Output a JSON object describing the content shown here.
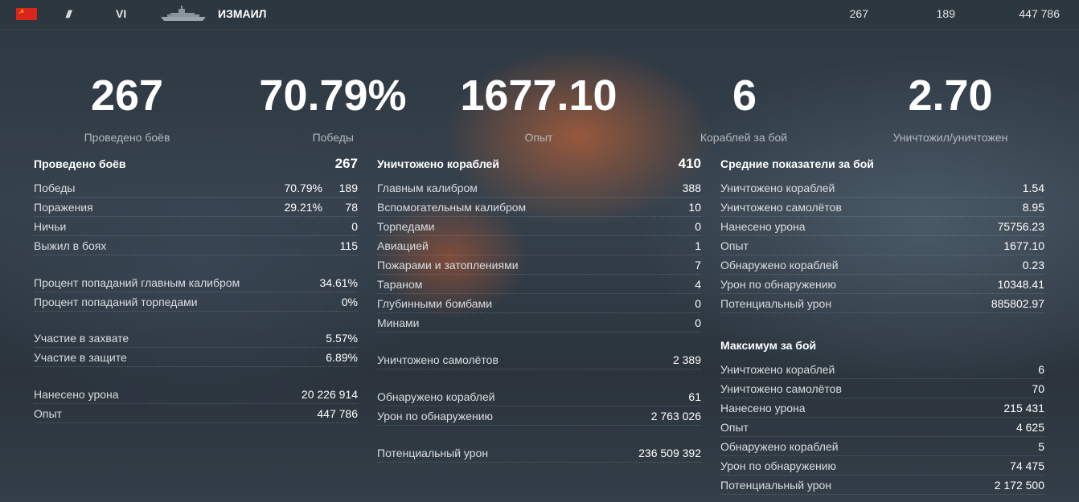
{
  "ship_bar": {
    "flag_icon": "ussr-flag-icon",
    "class_icon": "battleship-class-icon",
    "tier": "VI",
    "ship_image": "ship-silhouette-icon",
    "name": "ИЗМАИЛ",
    "battles": "267",
    "wins": "189",
    "experience": "447 786"
  },
  "summary": [
    {
      "value": "267",
      "label": "Проведено боёв"
    },
    {
      "value": "70.79%",
      "label": "Победы"
    },
    {
      "value": "1677.10",
      "label": "Опыт"
    },
    {
      "value": "6",
      "label": "Кораблей за бой"
    },
    {
      "value": "2.70",
      "label": "Уничтожил/уничтожен"
    }
  ],
  "col1": {
    "header": {
      "label": "Проведено боёв",
      "value": "267"
    },
    "rows": [
      {
        "label": "Победы",
        "pct": "70.79%",
        "value": "189"
      },
      {
        "label": "Поражения",
        "pct": "29.21%",
        "value": "78"
      },
      {
        "label": "Ничьи",
        "value": "0"
      },
      {
        "label": "Выжил в боях",
        "value": "115"
      },
      {
        "label": "Процент попаданий главным калибром",
        "value": "34.61%"
      },
      {
        "label": "Процент попаданий торпедами",
        "value": "0%"
      },
      {
        "label": "Участие в захвате",
        "value": "5.57%"
      },
      {
        "label": "Участие в защите",
        "value": "6.89%"
      },
      {
        "label": "Нанесено урона",
        "value": "20 226 914"
      },
      {
        "label": "Опыт",
        "value": "447 786"
      }
    ]
  },
  "col2": {
    "header": {
      "label": "Уничтожено кораблей",
      "value": "410"
    },
    "rows": [
      {
        "label": "Главным калибром",
        "value": "388"
      },
      {
        "label": "Вспомогательным калибром",
        "value": "10"
      },
      {
        "label": "Торпедами",
        "value": "0"
      },
      {
        "label": "Авиацией",
        "value": "1"
      },
      {
        "label": "Пожарами и затоплениями",
        "value": "7"
      },
      {
        "label": "Тараном",
        "value": "4"
      },
      {
        "label": "Глубинными бомбами",
        "value": "0"
      },
      {
        "label": "Минами",
        "value": "0"
      },
      {
        "label": "Уничтожено самолётов",
        "value": "2 389"
      },
      {
        "label": "Обнаружено кораблей",
        "value": "61"
      },
      {
        "label": "Урон по обнаружению",
        "value": "2 763 026"
      },
      {
        "label": "Потенциальный урон",
        "value": "236 509 392"
      }
    ]
  },
  "col3": {
    "avg_header": "Средние показатели за бой",
    "avg_rows": [
      {
        "label": "Уничтожено кораблей",
        "value": "1.54"
      },
      {
        "label": "Уничтожено самолётов",
        "value": "8.95"
      },
      {
        "label": "Нанесено урона",
        "value": "75756.23"
      },
      {
        "label": "Опыт",
        "value": "1677.10"
      },
      {
        "label": "Обнаружено кораблей",
        "value": "0.23"
      },
      {
        "label": "Урон по обнаружению",
        "value": "10348.41"
      },
      {
        "label": "Потенциальный урон",
        "value": "885802.97"
      }
    ],
    "max_header": "Максимум за бой",
    "max_rows": [
      {
        "label": "Уничтожено кораблей",
        "value": "6"
      },
      {
        "label": "Уничтожено самолётов",
        "value": "70"
      },
      {
        "label": "Нанесено урона",
        "value": "215 431"
      },
      {
        "label": "Опыт",
        "value": "4 625"
      },
      {
        "label": "Обнаружено кораблей",
        "value": "5"
      },
      {
        "label": "Урон по обнаружению",
        "value": "74 475"
      },
      {
        "label": "Потенциальный урон",
        "value": "2 172 500"
      }
    ]
  }
}
